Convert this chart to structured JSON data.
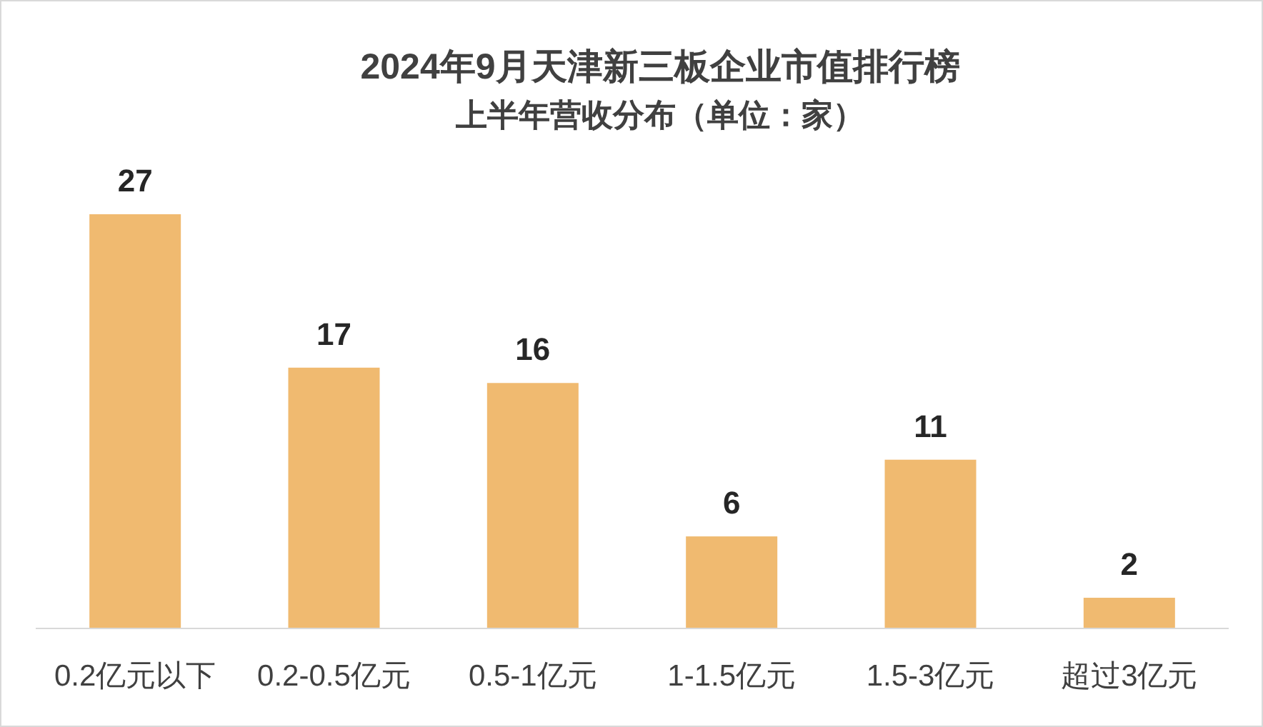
{
  "chart_data": {
    "type": "bar",
    "title": "2024年9月天津新三板企业市值排行榜",
    "subtitle": "上半年营收分布（单位：家）",
    "categories": [
      "0.2亿元以下",
      "0.2-0.5亿元",
      "0.5-1亿元",
      "1-1.5亿元",
      "1.5-3亿元",
      "超过3亿元"
    ],
    "values": [
      27,
      17,
      16,
      6,
      11,
      2
    ],
    "color": "#f0ba70",
    "data_labels": true
  }
}
